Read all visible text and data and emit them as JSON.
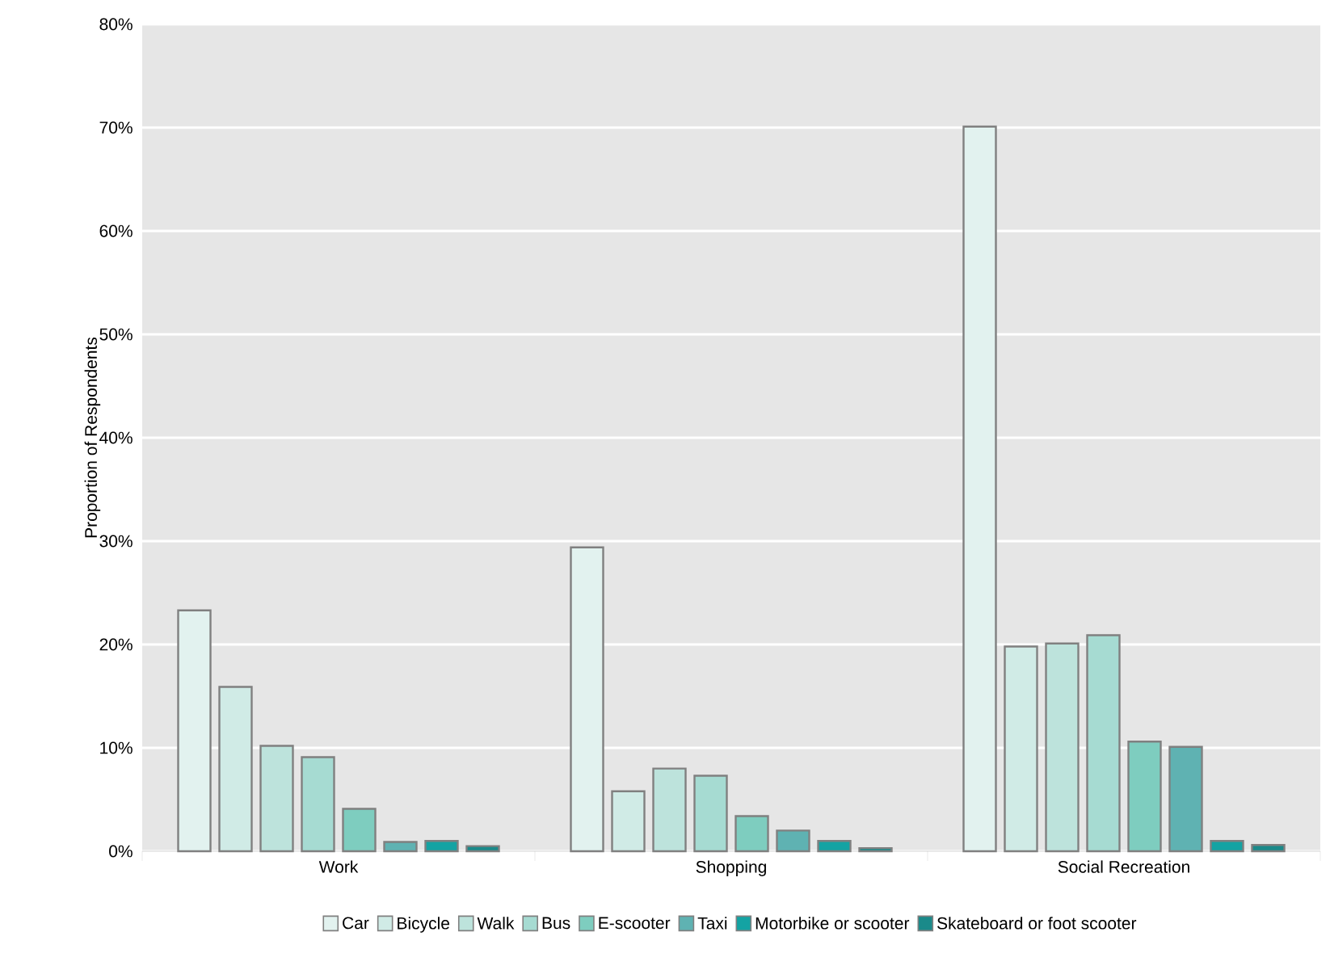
{
  "chart_data": {
    "type": "bar",
    "ylabel": "Proportion of Respondents",
    "categories": [
      "Work",
      "Shopping",
      "Social Recreation"
    ],
    "series": [
      {
        "name": "Car",
        "color": "#e2f2ef",
        "values": [
          23.3,
          29.4,
          70.1
        ]
      },
      {
        "name": "Bicycle",
        "color": "#d0ebe6",
        "values": [
          15.9,
          5.8,
          19.8
        ]
      },
      {
        "name": "Walk",
        "color": "#bde3dc",
        "values": [
          10.2,
          8.0,
          20.1
        ]
      },
      {
        "name": "Bus",
        "color": "#a6dbd2",
        "values": [
          9.1,
          7.3,
          20.9
        ]
      },
      {
        "name": "E-scooter",
        "color": "#7ecdbf",
        "values": [
          4.1,
          3.4,
          10.6
        ]
      },
      {
        "name": "Taxi",
        "color": "#5fb2b2",
        "values": [
          0.9,
          2.0,
          10.1
        ]
      },
      {
        "name": "Motorbike or scooter",
        "color": "#14a3a3",
        "values": [
          1.0,
          1.0,
          1.0
        ]
      },
      {
        "name": "Skateboard or foot scooter",
        "color": "#1a8a8a",
        "values": [
          0.5,
          0.3,
          0.6
        ]
      }
    ],
    "ylim": [
      0,
      80
    ],
    "yticks": [
      {
        "value": 0,
        "label": "0%"
      },
      {
        "value": 10,
        "label": "10%"
      },
      {
        "value": 20,
        "label": "20%"
      },
      {
        "value": 30,
        "label": "30%"
      },
      {
        "value": 40,
        "label": "40%"
      },
      {
        "value": 50,
        "label": "50%"
      },
      {
        "value": 60,
        "label": "60%"
      },
      {
        "value": 70,
        "label": "70%"
      },
      {
        "value": 80,
        "label": "80%"
      }
    ],
    "grid": "y",
    "legend": "bottom"
  }
}
